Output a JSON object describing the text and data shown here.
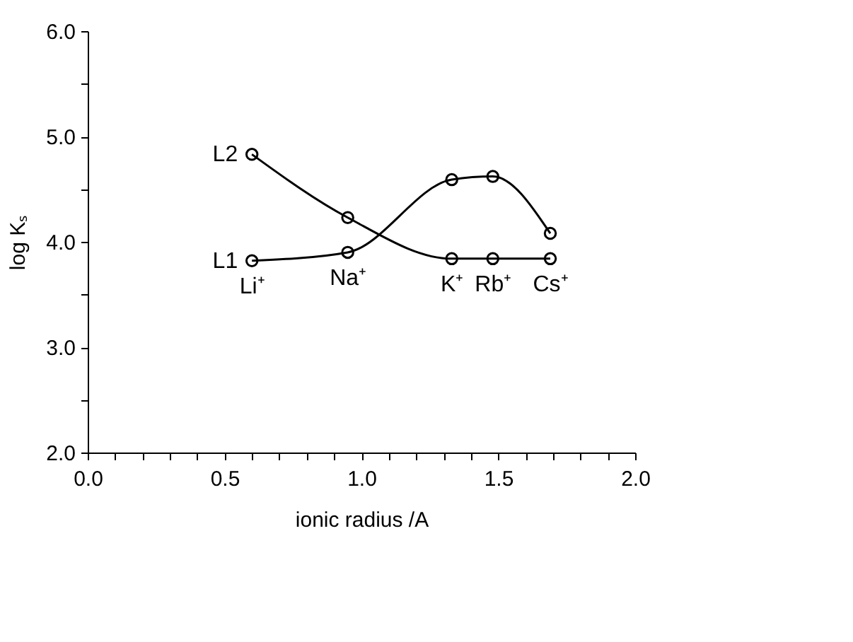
{
  "chart_data": {
    "type": "line",
    "xlabel": "ionic radius /A",
    "ylabel": "log Kₛ",
    "x": [
      0.6,
      0.95,
      1.33,
      1.48,
      1.69
    ],
    "series": [
      {
        "name": "L1",
        "color": "#000000",
        "values": [
          3.82,
          3.9,
          4.59,
          4.62,
          4.08
        ]
      },
      {
        "name": "L2",
        "color": "#000000",
        "values": [
          4.83,
          4.23,
          3.84,
          3.84,
          3.84
        ]
      }
    ],
    "annotations": [
      {
        "text": "Li⁺",
        "x": 0.6,
        "y": 3.82
      },
      {
        "text": "Na⁺",
        "x": 0.95,
        "y": 3.9
      },
      {
        "text": "K⁺",
        "x": 1.33,
        "y": 3.84
      },
      {
        "text": "Rb⁺",
        "x": 1.48,
        "y": 3.84
      },
      {
        "text": "Cs⁺",
        "x": 1.69,
        "y": 3.84
      }
    ],
    "xlim": [
      0,
      2.0
    ],
    "ylim": [
      2.0,
      6.0
    ],
    "xticks": [
      {
        "value": 0,
        "label": "0.0"
      },
      {
        "value": 0.1,
        "label": null
      },
      {
        "value": 0.2,
        "label": null
      },
      {
        "value": 0.3,
        "label": null
      },
      {
        "value": 0.4,
        "label": null
      },
      0.5,
      {
        "value": 0.6,
        "label": null
      },
      {
        "value": 0.7,
        "label": null
      },
      {
        "value": 0.8,
        "label": null
      },
      {
        "value": 0.9,
        "label": null
      },
      {
        "value": 1,
        "label": "1.0"
      },
      {
        "value": 1.1,
        "label": null
      },
      {
        "value": 1.2,
        "label": null
      },
      {
        "value": 1.3,
        "label": null
      },
      {
        "value": 1.4,
        "label": null
      },
      1.5,
      {
        "value": 1.6,
        "label": null
      },
      {
        "value": 1.7,
        "label": null
      },
      {
        "value": 1.8,
        "label": null
      },
      {
        "value": 1.9,
        "label": null
      },
      {
        "value": 2,
        "label": "2.0"
      }
    ],
    "yticks": [
      {
        "value": 2,
        "label": "2.0"
      },
      {
        "value": 2.5,
        "label": null
      },
      {
        "value": 3,
        "label": "3.0"
      },
      {
        "value": 3.5,
        "label": null
      },
      {
        "value": 4,
        "label": "4.0"
      },
      {
        "value": 4.5,
        "label": null
      },
      {
        "value": 5,
        "label": "5.0"
      },
      {
        "value": 5.5,
        "label": null
      },
      {
        "value": 6,
        "label": "6.0"
      }
    ],
    "marker": "circle",
    "line_style": "solid",
    "legend": "left"
  }
}
